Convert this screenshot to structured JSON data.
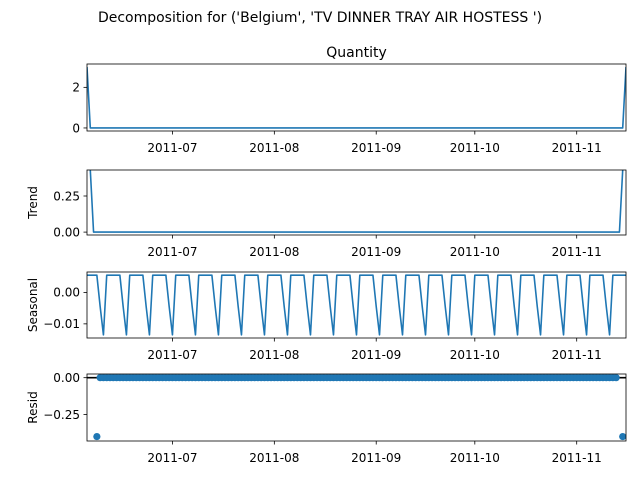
{
  "figure": {
    "suptitle": "Decomposition for ('Belgium', 'TV DINNER TRAY AIR HOSTESS ')"
  },
  "colors": {
    "line": "#1f77b4",
    "axes": "#000000",
    "background": "#ffffff"
  },
  "chart_data": [
    {
      "type": "line",
      "title": "Quantity",
      "xlabel": "",
      "ylabel": "",
      "x_start": "2011-06-05",
      "x_end": "2011-11-16",
      "xlim": [
        "2011-06-05",
        "2011-11-16"
      ],
      "ylim": [
        -0.15,
        3.15
      ],
      "yticks": [
        0,
        2
      ],
      "ytick_labels": [
        "0",
        "2"
      ],
      "xtick_labels": [
        "2011-07",
        "2011-08",
        "2011-09",
        "2011-10",
        "2011-11"
      ],
      "points": [
        {
          "x": "2011-06-05",
          "y": 3
        },
        {
          "x": "2011-06-06",
          "y": 0
        },
        {
          "x": "2011-11-15",
          "y": 0
        },
        {
          "x": "2011-11-16",
          "y": 3
        }
      ]
    },
    {
      "type": "line",
      "title": "",
      "ylabel": "Trend",
      "xlim": [
        "2011-06-05",
        "2011-11-16"
      ],
      "ylim": [
        -0.02,
        0.43
      ],
      "yticks": [
        0,
        0.25
      ],
      "ytick_labels": [
        "0.00",
        "0.25"
      ],
      "xtick_labels": [
        "2011-07",
        "2011-08",
        "2011-09",
        "2011-10",
        "2011-11"
      ],
      "points": [
        {
          "x": "2011-06-06",
          "y": 0.43
        },
        {
          "x": "2011-06-07",
          "y": 0
        },
        {
          "x": "2011-11-14",
          "y": 0
        },
        {
          "x": "2011-11-15",
          "y": 0.43
        }
      ]
    },
    {
      "type": "line",
      "title": "",
      "ylabel": "Seasonal",
      "xlim": [
        "2011-06-05",
        "2011-11-16"
      ],
      "ylim": [
        -0.0145,
        0.0065
      ],
      "yticks": [
        0,
        -0.01
      ],
      "ytick_labels": [
        "0.00",
        "−0.01"
      ],
      "xtick_labels": [
        "2011-07",
        "2011-08",
        "2011-09",
        "2011-10",
        "2011-11"
      ],
      "period_days": 7,
      "weekly_pattern": [
        0.0055,
        0.0055,
        0.0055,
        0.0055,
        -0.0045,
        -0.0135,
        0.0055
      ]
    },
    {
      "type": "scatter",
      "title": "",
      "ylabel": "Resid",
      "xlim": [
        "2011-06-05",
        "2011-11-16"
      ],
      "ylim": [
        -0.43,
        0.025
      ],
      "yticks": [
        0,
        -0.25
      ],
      "ytick_labels": [
        "0.00",
        "−0.25"
      ],
      "xtick_labels": [
        "2011-07",
        "2011-08",
        "2011-09",
        "2011-10",
        "2011-11"
      ],
      "baseline": 0,
      "points_start": "2011-06-08",
      "points_end": "2011-11-13",
      "points_value": 0,
      "outliers": [
        {
          "x": "2011-06-08",
          "y": -0.4
        },
        {
          "x": "2011-11-15",
          "y": -0.4
        }
      ]
    }
  ]
}
